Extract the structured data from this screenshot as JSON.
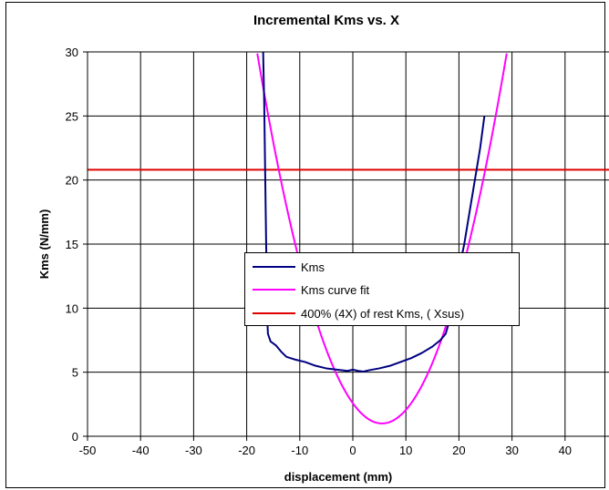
{
  "chart_data": {
    "type": "line",
    "title": "Incremental Kms vs. X",
    "xlabel": "displacement (mm)",
    "ylabel": "Kms (N/mm)",
    "xlim": [
      -50,
      50
    ],
    "ylim": [
      0,
      30
    ],
    "x_ticks": [
      -50,
      -40,
      -30,
      -20,
      -10,
      0,
      10,
      20,
      30,
      40,
      50
    ],
    "y_ticks": [
      0,
      5,
      10,
      15,
      20,
      25,
      30
    ],
    "grid": true,
    "legend_position": "center-right",
    "series": [
      {
        "name": "Kms",
        "color": "#000080",
        "points": [
          [
            -16.9,
            30
          ],
          [
            -16.7,
            26
          ],
          [
            -16.5,
            20
          ],
          [
            -16.3,
            14
          ],
          [
            -16.2,
            10
          ],
          [
            -16.0,
            8
          ],
          [
            -15.5,
            7.4
          ],
          [
            -14.5,
            7.1
          ],
          [
            -13.5,
            6.6
          ],
          [
            -12.5,
            6.2
          ],
          [
            -11.0,
            6.0
          ],
          [
            -9.0,
            5.8
          ],
          [
            -7.0,
            5.5
          ],
          [
            -5.0,
            5.3
          ],
          [
            -3.0,
            5.2
          ],
          [
            -1.0,
            5.1
          ],
          [
            0.0,
            5.2
          ],
          [
            1.0,
            5.1
          ],
          [
            2.0,
            5.05
          ],
          [
            3.0,
            5.15
          ],
          [
            5.0,
            5.3
          ],
          [
            7.0,
            5.5
          ],
          [
            9.0,
            5.8
          ],
          [
            11.0,
            6.1
          ],
          [
            13.0,
            6.5
          ],
          [
            15.0,
            7.0
          ],
          [
            16.5,
            7.5
          ],
          [
            17.5,
            8.0
          ],
          [
            18.2,
            9.0
          ],
          [
            19.0,
            11.0
          ],
          [
            20.0,
            13.0
          ],
          [
            21.0,
            15.0
          ],
          [
            22.0,
            17.5
          ],
          [
            23.0,
            20.0
          ],
          [
            24.0,
            22.5
          ],
          [
            24.8,
            25.0
          ]
        ]
      },
      {
        "name": "Kms curve fit",
        "color": "#ff00ff",
        "fit": {
          "x0": 5.5,
          "ymin": 1.0,
          "k": 0.0523
        },
        "x_range": [
          -18.0,
          29.0
        ]
      },
      {
        "name": "400% (4X) of rest Kms, ( Xsus)",
        "color": "#e00000",
        "constant": 20.8
      }
    ]
  }
}
